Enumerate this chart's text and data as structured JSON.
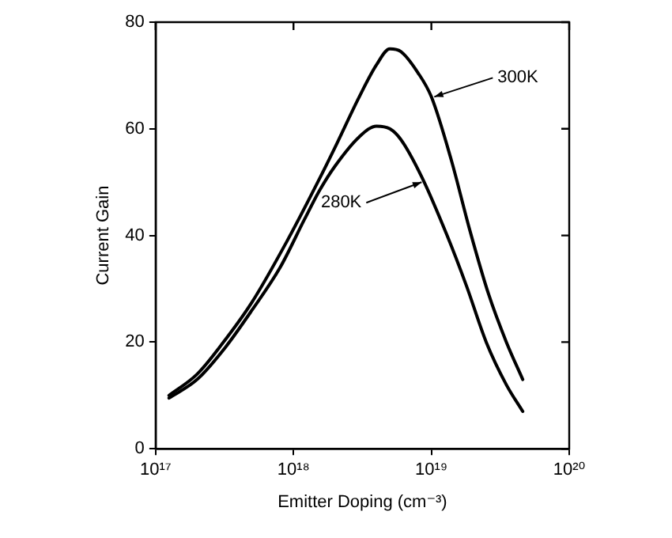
{
  "chart_data": {
    "type": "line",
    "xlabel": "Emitter Doping (cm⁻³)",
    "ylabel": "Current Gain",
    "log": "x",
    "grid": false,
    "legend": false,
    "marker": "none",
    "line_style": "solid",
    "xlim": [
      1e+17,
      1e+20
    ],
    "xticks": [
      {
        "value": 1e+17,
        "label": "10¹⁷"
      },
      {
        "value": 1e+18,
        "label": "10¹⁸"
      },
      {
        "value": 1e+19,
        "label": "10¹⁹"
      },
      {
        "value": 1e+20,
        "label": "10²⁰"
      }
    ],
    "ylim": [
      0,
      80
    ],
    "yticks": [
      0,
      20,
      40,
      60,
      80
    ],
    "series": [
      {
        "color": "#000000",
        "x": [
          1.25e+17,
          2e+17,
          3e+17,
          5e+17,
          9e+17,
          1.5e+18,
          2e+18,
          3e+18,
          4e+18,
          5e+18,
          6e+18,
          8e+18,
          1e+19,
          1.4e+19,
          1.9e+19,
          2.6e+19,
          3.5e+19,
          4.6e+19
        ],
        "values": [
          10,
          14,
          19.5,
          27.5,
          39,
          50,
          56.5,
          66,
          72,
          75,
          74.5,
          70.5,
          66,
          54,
          41,
          29,
          20,
          13
        ]
      },
      {
        "color": "#000000",
        "x": [
          1.25e+17,
          2e+17,
          3.2e+17,
          5e+17,
          8e+17,
          1.2e+18,
          1.55e+18,
          2e+18,
          3e+18,
          4e+18,
          5e+18,
          6e+18,
          8.5e+18,
          1.3e+19,
          1.8e+19,
          2.5e+19,
          3.5e+19,
          4.6e+19
        ],
        "values": [
          9.5,
          13,
          19,
          26,
          34,
          43,
          48.5,
          53,
          58.5,
          60.5,
          60,
          58,
          51,
          40,
          30.5,
          20,
          12,
          7
        ]
      }
    ],
    "annotations": [
      {
        "text": "300K",
        "x": 1.05e+19,
        "y": 66
      },
      {
        "text": "280K",
        "x": 8.5e+18,
        "y": 50
      }
    ]
  }
}
